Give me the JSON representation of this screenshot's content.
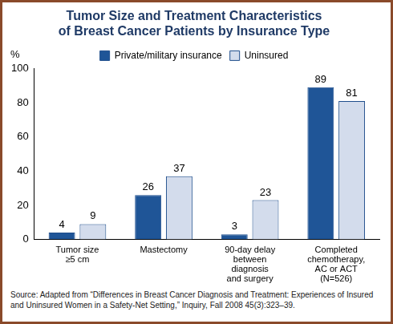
{
  "chart_data": {
    "type": "bar",
    "title": [
      "Tumor Size and Treatment Characteristics",
      "of Breast Cancer Patients by Insurance Type"
    ],
    "ylabel": "%",
    "categories": [
      [
        "Tumor size",
        "≥5 cm"
      ],
      [
        "Mastectomy"
      ],
      [
        "90-day delay",
        "between",
        "diagnosis",
        "and surgery"
      ],
      [
        "Completed",
        "chemotherapy,",
        "AC or ACT",
        "(N=526)"
      ]
    ],
    "series": [
      {
        "name": "Private/military insurance",
        "color": "#1f5597",
        "values": [
          4,
          26,
          3,
          89
        ]
      },
      {
        "name": "Uninsured",
        "color": "#d3dcec",
        "values": [
          9,
          37,
          23,
          81
        ]
      }
    ],
    "ylim": [
      0,
      100
    ],
    "yticks": [
      0,
      20,
      40,
      60,
      80,
      100
    ],
    "grid": false,
    "legend": "top",
    "data_labels": true,
    "source": "Source: Adapted from “Differences in Breast Cancer Diagnosis and Treatment: Experiences of Insured and Uninsured Women in a Safety-Net Setting,” Inquiry, Fall 2008 45(3):323–39."
  }
}
